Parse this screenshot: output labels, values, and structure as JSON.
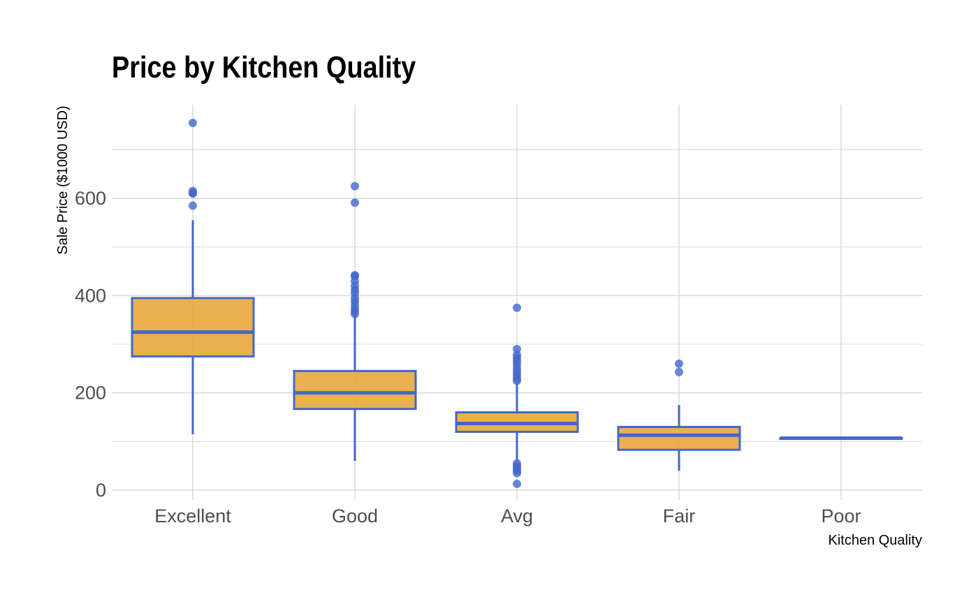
{
  "chart_data": {
    "type": "box",
    "title": "Price by Kitchen Quality",
    "xlabel": "Kitchen Quality",
    "ylabel": "Sale Price ($1000 USD)",
    "ylim": [
      -20,
      795
    ],
    "yticks": [
      0,
      200,
      400,
      600
    ],
    "grid": true,
    "colors": {
      "fill": "#E8A93A",
      "stroke": "#4466CC",
      "grid": "#D0D0D0"
    },
    "categories": [
      "Excellent",
      "Good",
      "Avg",
      "Fair",
      "Poor"
    ],
    "boxes": [
      {
        "category": "Excellent",
        "whisker_low": 115,
        "q1": 275,
        "median": 325,
        "q3": 395,
        "whisker_high": 555,
        "outliers": [
          755,
          615,
          611,
          610,
          585
        ]
      },
      {
        "category": "Good",
        "whisker_low": 60,
        "q1": 167,
        "median": 200,
        "q3": 245,
        "whisker_high": 360,
        "outliers": [
          625,
          591,
          442,
          440,
          430,
          420,
          412,
          405,
          395,
          388,
          380,
          373,
          367,
          362
        ]
      },
      {
        "category": "Avg",
        "whisker_low": 60,
        "q1": 120,
        "median": 137,
        "q3": 160,
        "whisker_high": 220,
        "outliers": [
          375,
          290,
          278,
          272,
          265,
          258,
          250,
          243,
          237,
          230,
          225,
          55,
          50,
          45,
          40,
          35,
          13
        ]
      },
      {
        "category": "Fair",
        "whisker_low": 40,
        "q1": 83,
        "median": 113,
        "q3": 130,
        "whisker_high": 175,
        "outliers": [
          260,
          243
        ]
      },
      {
        "category": "Poor",
        "whisker_low": 107,
        "q1": 107,
        "median": 107,
        "q3": 107,
        "whisker_high": 107,
        "outliers": []
      }
    ]
  }
}
